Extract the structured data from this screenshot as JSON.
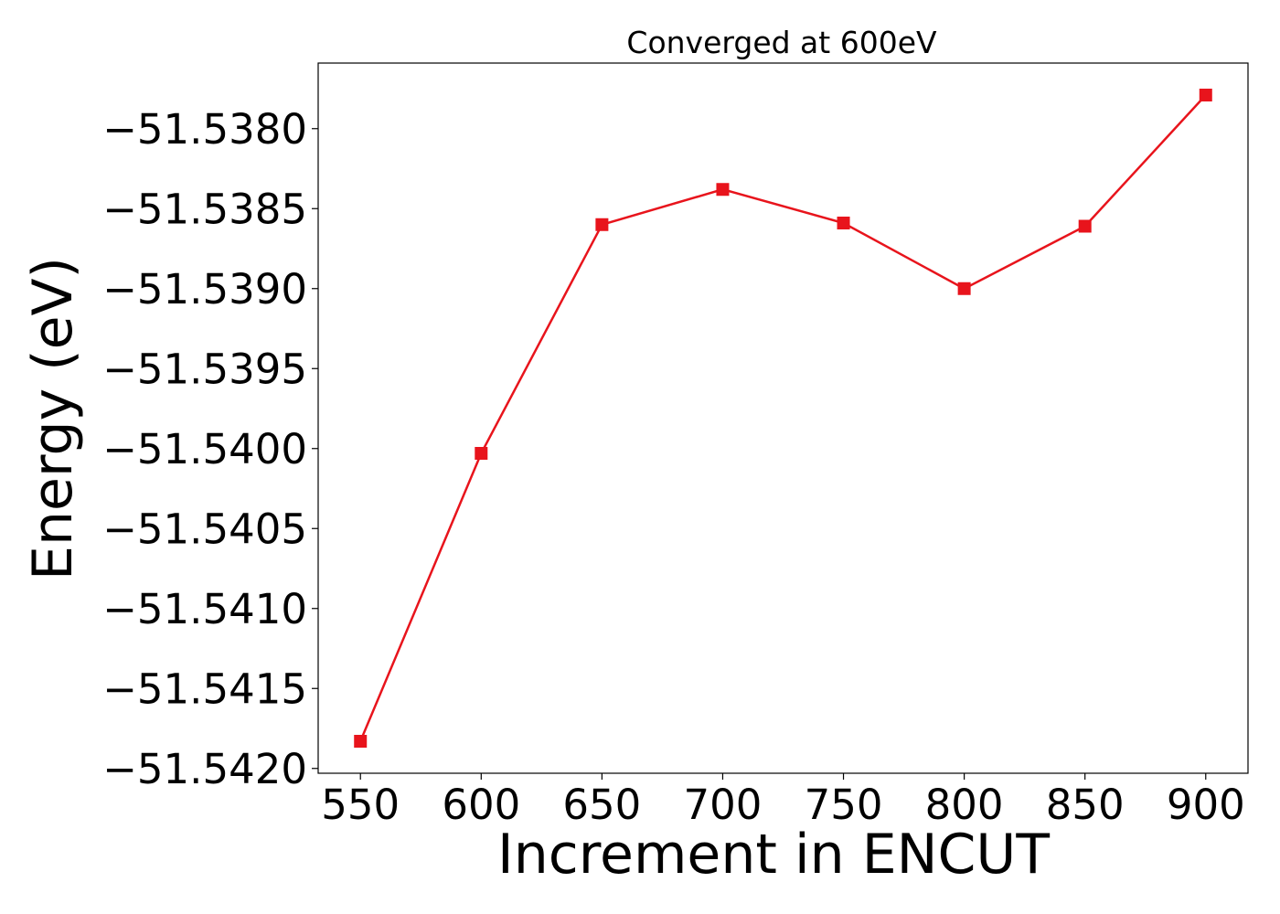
{
  "chart_data": {
    "type": "line",
    "title": "Converged at 600eV",
    "xlabel": "Increment in ENCUT",
    "ylabel": "Energy (eV)",
    "x": [
      550,
      600,
      650,
      700,
      750,
      800,
      850,
      900
    ],
    "series": [
      {
        "values": [
          -51.54183,
          -51.54003,
          -51.5386,
          -51.53838,
          -51.53859,
          -51.539,
          -51.53861,
          -51.53779
        ],
        "color": "#e8141c",
        "marker": "square"
      }
    ],
    "xticks": [
      550,
      600,
      650,
      700,
      750,
      800,
      850,
      900
    ],
    "xtick_labels": [
      "550",
      "600",
      "650",
      "700",
      "750",
      "800",
      "850",
      "900"
    ],
    "yticks": [
      -51.538,
      -51.5385,
      -51.539,
      -51.5395,
      -51.54,
      -51.5405,
      -51.541,
      -51.5415,
      -51.542
    ],
    "ytick_labels": [
      "−51.5380",
      "−51.5385",
      "−51.5390",
      "−51.5395",
      "−51.5400",
      "−51.5405",
      "−51.5410",
      "−51.5415",
      "−51.5420"
    ],
    "xlim": [
      532.5,
      917.5
    ],
    "ylim": [
      -51.54203,
      -51.53759
    ],
    "grid": false,
    "legend": false
  }
}
